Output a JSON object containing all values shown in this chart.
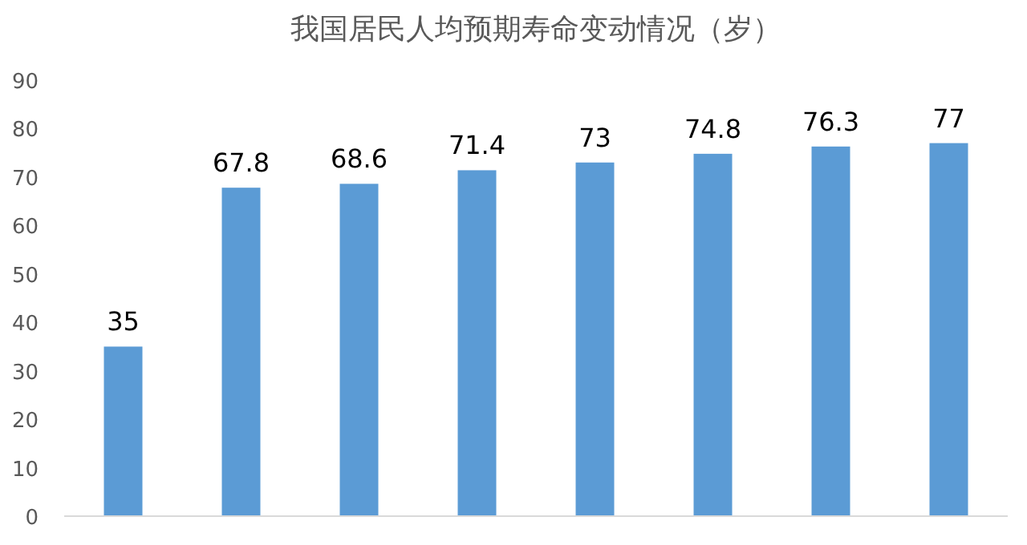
{
  "chart_data": {
    "type": "bar",
    "title": "我国居民人均预期寿命变动情况（岁）",
    "categories": [
      null,
      null,
      null,
      null,
      null,
      null,
      null,
      null
    ],
    "values": [
      35,
      67.8,
      68.6,
      71.4,
      73,
      74.8,
      76.3,
      77
    ],
    "color": "#5b9bd5",
    "ylim": [
      0,
      90
    ],
    "yticks": [
      0,
      10,
      20,
      30,
      40,
      50,
      60,
      70,
      80,
      90
    ],
    "data_labels": true
  }
}
